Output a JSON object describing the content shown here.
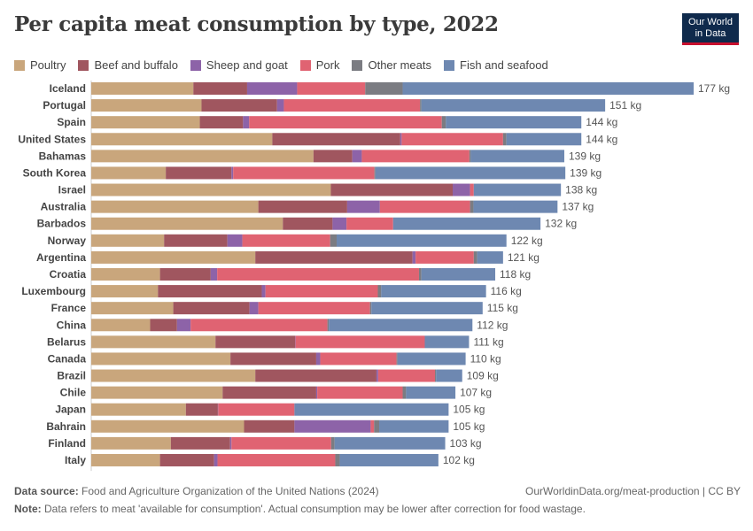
{
  "title": "Per capita meat consumption by type, 2022",
  "logo": {
    "line1": "Our World",
    "line2": "in Data"
  },
  "footer": {
    "source_label": "Data source:",
    "source": "Food and Agriculture Organization of the United Nations (2024)",
    "url": "OurWorldinData.org/meat-production | CC BY",
    "note_label": "Note:",
    "note": "Data refers to meat 'available for consumption'. Actual consumption may be lower after correction for food wastage."
  },
  "chart_data": {
    "type": "bar",
    "orientation": "horizontal",
    "stacked": true,
    "title": "Per capita meat consumption by type, 2022",
    "unit": "kg",
    "legend_position": "top",
    "grid": false,
    "categories": [
      "Iceland",
      "Portugal",
      "Spain",
      "United States",
      "Bahamas",
      "South Korea",
      "Israel",
      "Australia",
      "Barbados",
      "Norway",
      "Argentina",
      "Croatia",
      "Luxembourg",
      "France",
      "China",
      "Belarus",
      "Canada",
      "Brazil",
      "Chile",
      "Japan",
      "Bahrain",
      "Finland",
      "Italy"
    ],
    "totals": [
      "177 kg",
      "151 kg",
      "144 kg",
      "144 kg",
      "139 kg",
      "139 kg",
      "138 kg",
      "137 kg",
      "132 kg",
      "122 kg",
      "121 kg",
      "118 kg",
      "116 kg",
      "115 kg",
      "112 kg",
      "111 kg",
      "110 kg",
      "109 kg",
      "107 kg",
      "105 kg",
      "105 kg",
      "103 kg",
      "102 kg"
    ],
    "series": [
      {
        "name": "Poultry",
        "color": "#c9a67c",
        "values": [
          30.0,
          32.4,
          31.9,
          53.2,
          65.3,
          21.9,
          70.4,
          49.1,
          56.3,
          21.4,
          48.2,
          20.2,
          19.6,
          24.1,
          17.3,
          36.5,
          40.9,
          48.2,
          38.6,
          27.8,
          44.9,
          23.4,
          20.2
        ]
      },
      {
        "name": "Beef and buffalo",
        "color": "#a0565f",
        "values": [
          15.8,
          22.2,
          12.7,
          37.6,
          11.4,
          19.3,
          35.8,
          26.1,
          14.6,
          18.6,
          46.2,
          14.9,
          30.5,
          22.4,
          7.9,
          23.4,
          25.2,
          35.6,
          27.5,
          9.4,
          14.8,
          17.4,
          15.9
        ]
      },
      {
        "name": "Sheep and goat",
        "color": "#8d63a8",
        "values": [
          14.7,
          2.0,
          1.8,
          0.4,
          2.8,
          0.5,
          5.1,
          9.6,
          4.1,
          4.4,
          0.9,
          1.9,
          1.1,
          2.6,
          4.0,
          0.1,
          1.2,
          0.5,
          0.3,
          0.1,
          22.4,
          0.4,
          1.0
        ]
      },
      {
        "name": "Pork",
        "color": "#e06372",
        "values": [
          20.0,
          40.0,
          56.6,
          29.8,
          31.6,
          41.5,
          1.1,
          26.5,
          13.7,
          25.8,
          17.1,
          59.3,
          33.0,
          32.8,
          40.2,
          38.0,
          22.4,
          16.7,
          25.1,
          22.4,
          1.0,
          29.3,
          34.6
        ]
      },
      {
        "name": "Other meats",
        "color": "#7b7c82",
        "values": [
          11.0,
          0.4,
          1.2,
          1.0,
          0.4,
          0.3,
          0.0,
          1.0,
          0.0,
          1.9,
          1.0,
          0.7,
          1.0,
          0.4,
          0.4,
          0.0,
          0.3,
          0.3,
          1.0,
          0.0,
          1.5,
          1.0,
          1.3
        ]
      },
      {
        "name": "Fish and seafood",
        "color": "#6e88b1",
        "values": [
          85.5,
          54.0,
          39.8,
          22.0,
          27.5,
          55.8,
          25.6,
          24.7,
          43.3,
          49.9,
          7.6,
          21.7,
          30.8,
          32.7,
          42.2,
          13.0,
          20.0,
          7.7,
          14.5,
          45.3,
          20.4,
          32.5,
          29.0
        ]
      }
    ]
  }
}
